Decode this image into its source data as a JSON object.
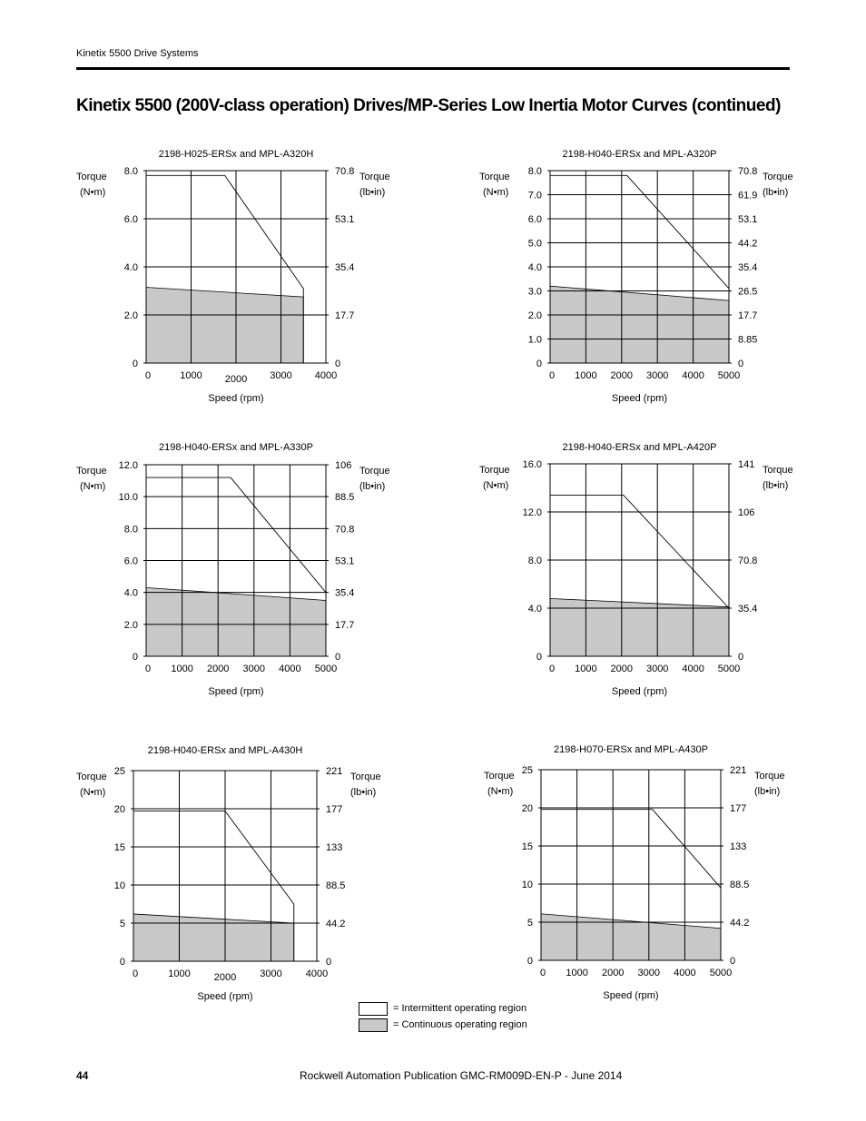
{
  "header": {
    "running_title": "Kinetix 5500 Drive Systems"
  },
  "title": "Kinetix 5500 (200V-class operation) Drives/MP-Series Low Inertia Motor Curves (continued)",
  "legend": {
    "intermittent": "= Intermittent operating region",
    "continuous": "= Continuous operating region",
    "intermittent_color": "#ffffff",
    "continuous_color": "#c8c8c8"
  },
  "footer": {
    "page_number": "44",
    "publication": "Rockwell Automation Publication GMC-RM009D-EN-P - June 2014"
  },
  "chart_data": [
    {
      "type": "area",
      "title": "2198-H025-ERSx and MPL-A320H",
      "ylabel_left": [
        "Torque",
        "(N•m)"
      ],
      "ylabel_right": [
        "Torque",
        "(lb•in)"
      ],
      "xlabel": "Speed (rpm)",
      "xlim": [
        0,
        4000
      ],
      "ylim": [
        0,
        8.0
      ],
      "x_ticks": [
        "0",
        "1000",
        "2000",
        "3000",
        "4000"
      ],
      "y_ticks_left": [
        "0",
        "2.0",
        "4.0",
        "6.0",
        "8.0"
      ],
      "y_ticks_right": [
        "0",
        "17.7",
        "35.4",
        "53.1",
        "70.8"
      ],
      "intermittent": {
        "x": [
          0,
          1750,
          3500,
          3500
        ],
        "y": [
          7.8,
          7.8,
          3.1,
          0
        ]
      },
      "continuous": {
        "x": [
          0,
          3500,
          3500
        ],
        "y": [
          3.15,
          2.75,
          0
        ]
      }
    },
    {
      "type": "area",
      "title": "2198-H040-ERSx and MPL-A320P",
      "ylabel_left": [
        "Torque",
        "(N•m)"
      ],
      "ylabel_right": [
        "Torque",
        "(lb•in)"
      ],
      "xlabel": "Speed (rpm)",
      "xlim": [
        0,
        5000
      ],
      "ylim": [
        0,
        8.0
      ],
      "x_ticks": [
        "0",
        "1000",
        "2000",
        "3000",
        "4000",
        "5000"
      ],
      "y_ticks_left": [
        "0",
        "1.0",
        "2.0",
        "3.0",
        "4.0",
        "5.0",
        "6.0",
        "7.0",
        "8.0"
      ],
      "y_ticks_right": [
        "0",
        "8.85",
        "17.7",
        "26.5",
        "35.4",
        "44.2",
        "53.1",
        "61.9",
        "70.8"
      ],
      "intermittent": {
        "x": [
          0,
          2150,
          5000,
          5000
        ],
        "y": [
          7.8,
          7.8,
          3.1,
          0
        ]
      },
      "continuous": {
        "x": [
          0,
          5000,
          5000
        ],
        "y": [
          3.2,
          2.6,
          0
        ]
      }
    },
    {
      "type": "area",
      "title": "2198-H040-ERSx and MPL-A330P",
      "ylabel_left": [
        "Torque",
        "(N•m)"
      ],
      "ylabel_right": [
        "Torque",
        "(lb•in)"
      ],
      "xlabel": "Speed (rpm)",
      "xlim": [
        0,
        5000
      ],
      "ylim": [
        0,
        12.0
      ],
      "x_ticks": [
        "0",
        "1000",
        "2000",
        "3000",
        "4000",
        "5000"
      ],
      "y_ticks_left": [
        "0",
        "2.0",
        "4.0",
        "6.0",
        "8.0",
        "10.0",
        "12.0"
      ],
      "y_ticks_right": [
        "0",
        "17.7",
        "35.4",
        "53.1",
        "70.8",
        "88.5",
        "106"
      ],
      "intermittent": {
        "x": [
          0,
          2350,
          5000,
          5000
        ],
        "y": [
          11.2,
          11.2,
          4.0,
          0
        ]
      },
      "continuous": {
        "x": [
          0,
          5000,
          5000
        ],
        "y": [
          4.3,
          3.5,
          0
        ]
      }
    },
    {
      "type": "area",
      "title": "2198-H040-ERSx and MPL-A420P",
      "ylabel_left": [
        "Torque",
        "(N•m)"
      ],
      "ylabel_right": [
        "Torque",
        "(lb•in)"
      ],
      "xlabel": "Speed (rpm)",
      "xlim": [
        0,
        5000
      ],
      "ylim": [
        0,
        16.0
      ],
      "x_ticks": [
        "0",
        "1000",
        "2000",
        "3000",
        "4000",
        "5000"
      ],
      "y_ticks_left": [
        "0",
        "4.0",
        "8.0",
        "12.0",
        "16.0"
      ],
      "y_ticks_right": [
        "0",
        "35.4",
        "70.8",
        "106",
        "141"
      ],
      "intermittent": {
        "x": [
          0,
          2050,
          5000,
          5000
        ],
        "y": [
          13.4,
          13.4,
          4.0,
          0
        ]
      },
      "continuous": {
        "x": [
          0,
          5000,
          5000
        ],
        "y": [
          4.8,
          4.1,
          0
        ]
      }
    },
    {
      "type": "area",
      "title": "2198-H040-ERSx and MPL-A430H",
      "ylabel_left": [
        "Torque",
        "(N•m)"
      ],
      "ylabel_right": [
        "Torque",
        "(lb•in)"
      ],
      "xlabel": "Speed (rpm)",
      "xlim": [
        0,
        4000
      ],
      "ylim": [
        0,
        25
      ],
      "x_ticks": [
        "0",
        "1000",
        "2000",
        "3000",
        "4000"
      ],
      "y_ticks_left": [
        "0",
        "5",
        "10",
        "15",
        "20",
        "25"
      ],
      "y_ticks_right": [
        "0",
        "44.2",
        "88.5",
        "133",
        "177",
        "221"
      ],
      "intermittent": {
        "x": [
          0,
          2000,
          3500,
          3500
        ],
        "y": [
          19.7,
          19.7,
          7.5,
          0
        ]
      },
      "continuous": {
        "x": [
          0,
          3500,
          3500
        ],
        "y": [
          6.2,
          5.0,
          0
        ]
      }
    },
    {
      "type": "area",
      "title": "2198-H070-ERSx and MPL-A430P",
      "ylabel_left": [
        "Torque",
        "(N•m)"
      ],
      "ylabel_right": [
        "Torque",
        "(lb•in)"
      ],
      "xlabel": "Speed (rpm)",
      "xlim": [
        0,
        5000
      ],
      "ylim": [
        0,
        25
      ],
      "x_ticks": [
        "0",
        "1000",
        "2000",
        "3000",
        "4000",
        "5000"
      ],
      "y_ticks_left": [
        "0",
        "5",
        "10",
        "15",
        "20",
        "25"
      ],
      "y_ticks_right": [
        "0",
        "44.2",
        "88.5",
        "133",
        "177",
        "221"
      ],
      "intermittent": {
        "x": [
          0,
          3100,
          5000,
          5000
        ],
        "y": [
          19.8,
          19.8,
          9.5,
          0
        ]
      },
      "continuous": {
        "x": [
          0,
          5000,
          5000
        ],
        "y": [
          6.1,
          4.2,
          0
        ]
      }
    }
  ]
}
